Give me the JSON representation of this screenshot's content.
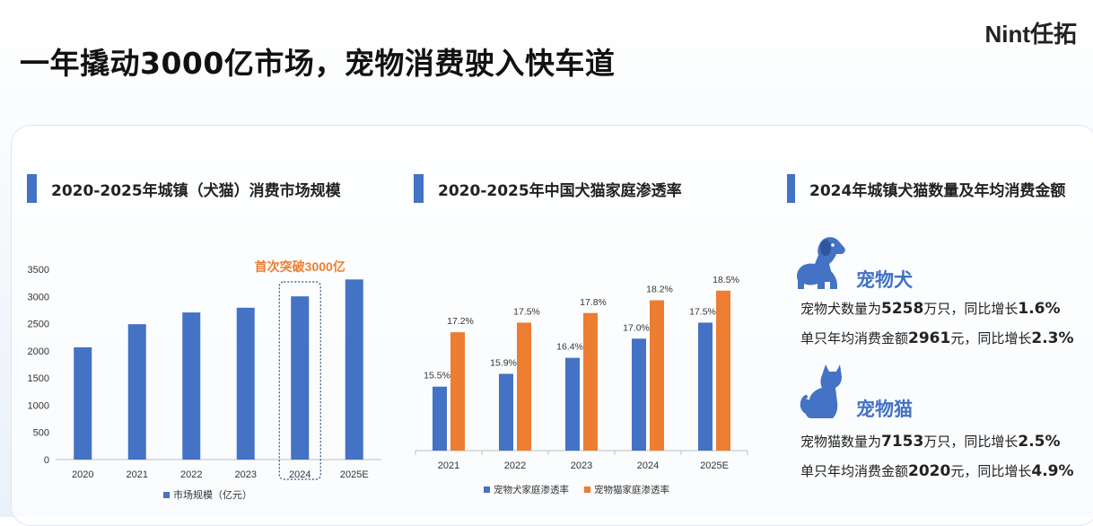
{
  "title": "一年撬动3000亿市场，宠物消费驶入快车道",
  "brand": "Nint任拓",
  "colors": {
    "accent": "#4472c4",
    "orange": "#ed7d31"
  },
  "sections": {
    "market": {
      "title": "2020-2025年城镇（犬猫）消费市场规模"
    },
    "penetration": {
      "title": "2020-2025年中国犬猫家庭渗透率"
    },
    "stats": {
      "title": "2024年城镇犬猫数量及年均消费金额"
    }
  },
  "chart_data": [
    {
      "type": "bar",
      "categories": [
        "2020",
        "2021",
        "2022",
        "2023",
        "2024",
        "2025E"
      ],
      "series": [
        {
          "name": "市场规模（亿元）",
          "values": [
            2065,
            2490,
            2706,
            2793,
            3002,
            3313
          ]
        }
      ],
      "yticks": [
        0,
        500,
        1000,
        1500,
        2000,
        2500,
        3000,
        3500
      ],
      "ylim": [
        0,
        3500
      ],
      "highlight": {
        "category": "2024",
        "annotation": "首次突破3000亿"
      },
      "legend": "bottom"
    },
    {
      "type": "bar",
      "categories": [
        "2021",
        "2022",
        "2023",
        "2024",
        "2025E"
      ],
      "series": [
        {
          "name": "宠物犬家庭渗透率",
          "values": [
            15.5,
            15.9,
            16.4,
            17.0,
            17.5
          ],
          "labels": [
            "15.5%",
            "15.9%",
            "16.4%",
            "17.0%",
            "17.5%"
          ]
        },
        {
          "name": "宠物猫家庭渗透率",
          "values": [
            17.2,
            17.5,
            17.8,
            18.2,
            18.5
          ],
          "labels": [
            "17.2%",
            "17.5%",
            "17.8%",
            "18.2%",
            "18.5%"
          ]
        }
      ],
      "legend": "bottom"
    }
  ],
  "pets": {
    "dog": {
      "name": "宠物犬",
      "icon": "dog-icon",
      "line1": {
        "prefix": "宠物犬数量为",
        "value": "5258",
        "mid": "万只，同比增长",
        "growth": "1.6%"
      },
      "line2": {
        "prefix": "单只年均消费金额",
        "value": "2961",
        "mid": "元，同比增长",
        "growth": "2.3%"
      }
    },
    "cat": {
      "name": "宠物猫",
      "icon": "cat-icon",
      "line1": {
        "prefix": "宠物猫数量为",
        "value": "7153",
        "mid": "万只，同比增长",
        "growth": "2.5%"
      },
      "line2": {
        "prefix": "单只年均消费金额",
        "value": "2020",
        "mid": "元，同比增长",
        "growth": "4.9%"
      }
    }
  }
}
